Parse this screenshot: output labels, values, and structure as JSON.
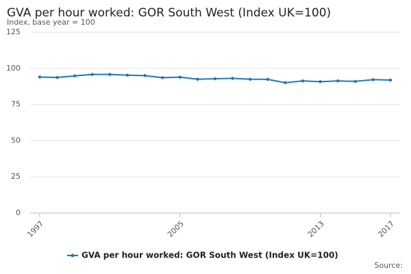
{
  "chart_data": {
    "type": "line",
    "title": "GVA per hour worked: GOR South West (Index UK=100)",
    "y_label": "Index, base year = 100",
    "source": "Source:",
    "x": [
      1997,
      1998,
      1999,
      2000,
      2001,
      2002,
      2003,
      2004,
      2005,
      2006,
      2007,
      2008,
      2009,
      2010,
      2011,
      2012,
      2013,
      2014,
      2015,
      2016,
      2017
    ],
    "series": [
      {
        "name": "GVA per hour worked: GOR South West (Index UK=100)",
        "color": "#1a78b8",
        "values": [
          94.0,
          93.7,
          94.8,
          95.8,
          95.8,
          95.3,
          95.0,
          93.6,
          93.9,
          92.5,
          92.8,
          93.1,
          92.5,
          92.4,
          90.1,
          91.3,
          90.8,
          91.3,
          91.0,
          92.2,
          91.9
        ]
      }
    ],
    "xlim": [
      1997,
      2017
    ],
    "xticks": [
      1997,
      2005,
      2013,
      2017
    ],
    "ylim": [
      0,
      125
    ],
    "yticks": [
      0,
      25,
      50,
      75,
      100,
      125
    ],
    "grid": true
  }
}
